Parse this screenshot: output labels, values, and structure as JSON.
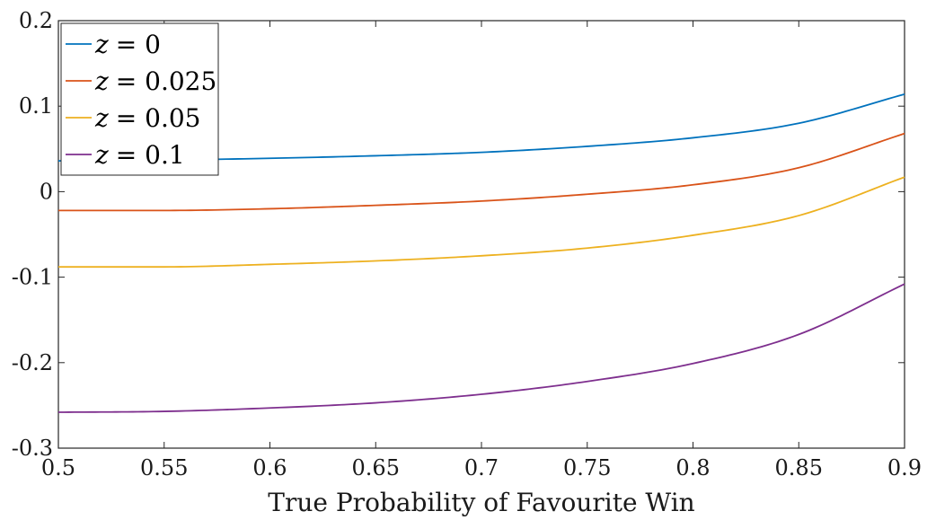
{
  "chart_data": {
    "type": "line",
    "title": "",
    "xlabel": "True Probability of Favourite Win",
    "ylabel": "",
    "xlim": [
      0.5,
      0.9
    ],
    "ylim": [
      -0.3,
      0.2
    ],
    "grid": false,
    "legend_position": "top-left",
    "x_ticks": [
      0.5,
      0.55,
      0.6,
      0.65,
      0.7,
      0.75,
      0.8,
      0.85,
      0.9
    ],
    "x_tick_labels": [
      "0.5",
      "0.55",
      "0.6",
      "0.65",
      "0.7",
      "0.75",
      "0.8",
      "0.85",
      "0.9"
    ],
    "y_ticks": [
      -0.3,
      -0.2,
      -0.1,
      0,
      0.1,
      0.2
    ],
    "y_tick_labels": [
      "-0.3",
      "-0.2",
      "-0.1",
      "0",
      "0.1",
      "0.2"
    ],
    "x": [
      0.5,
      0.55,
      0.6,
      0.65,
      0.7,
      0.75,
      0.8,
      0.85,
      0.9
    ],
    "series": [
      {
        "name": "z = 0",
        "name_var": "z",
        "name_value": "= 0",
        "color": "#0072BD",
        "values": [
          0.036,
          0.037,
          0.039,
          0.042,
          0.046,
          0.053,
          0.063,
          0.08,
          0.114
        ]
      },
      {
        "name": "z = 0.025",
        "name_var": "z",
        "name_value": "= 0.025",
        "color": "#D95319",
        "values": [
          -0.022,
          -0.022,
          -0.02,
          -0.016,
          -0.011,
          -0.003,
          0.008,
          0.028,
          0.068
        ]
      },
      {
        "name": "z = 0.05",
        "name_var": "z",
        "name_value": "= 0.05",
        "color": "#EDB120",
        "values": [
          -0.088,
          -0.088,
          -0.085,
          -0.081,
          -0.075,
          -0.066,
          -0.051,
          -0.028,
          0.017
        ]
      },
      {
        "name": "z = 0.1",
        "name_var": "z",
        "name_value": "= 0.1",
        "color": "#7E2F8E",
        "values": [
          -0.258,
          -0.257,
          -0.253,
          -0.247,
          -0.237,
          -0.222,
          -0.201,
          -0.167,
          -0.108
        ]
      }
    ]
  }
}
